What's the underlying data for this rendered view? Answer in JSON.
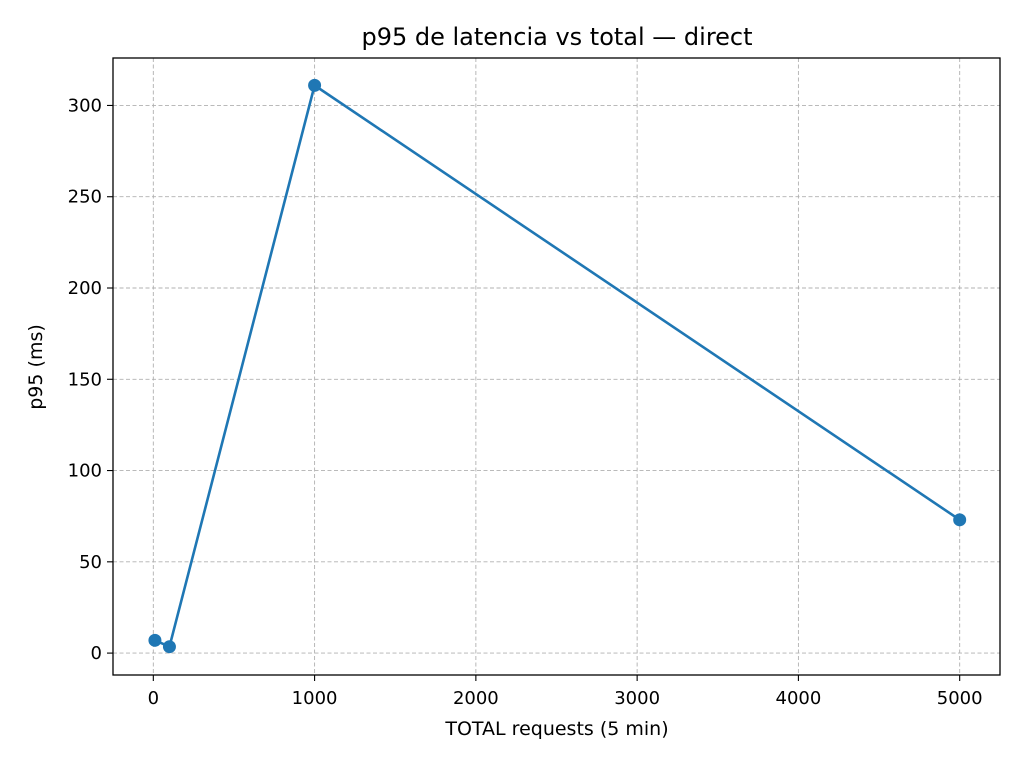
{
  "chart_data": {
    "type": "line",
    "title": "p95 de latencia vs total — direct",
    "xlabel": "TOTAL requests (5 min)",
    "ylabel": "p95 (ms)",
    "xlim": [
      -250,
      5250
    ],
    "ylim": [
      -12,
      326
    ],
    "xticks": [
      0,
      1000,
      2000,
      3000,
      4000,
      5000
    ],
    "yticks": [
      0,
      50,
      100,
      150,
      200,
      250,
      300
    ],
    "grid": true,
    "series": [
      {
        "color": "#1f77b4",
        "marker": "circle",
        "points": [
          {
            "x": 10,
            "y": 7
          },
          {
            "x": 100,
            "y": 3.5
          },
          {
            "x": 1000,
            "y": 311
          },
          {
            "x": 5000,
            "y": 73
          }
        ]
      }
    ]
  }
}
